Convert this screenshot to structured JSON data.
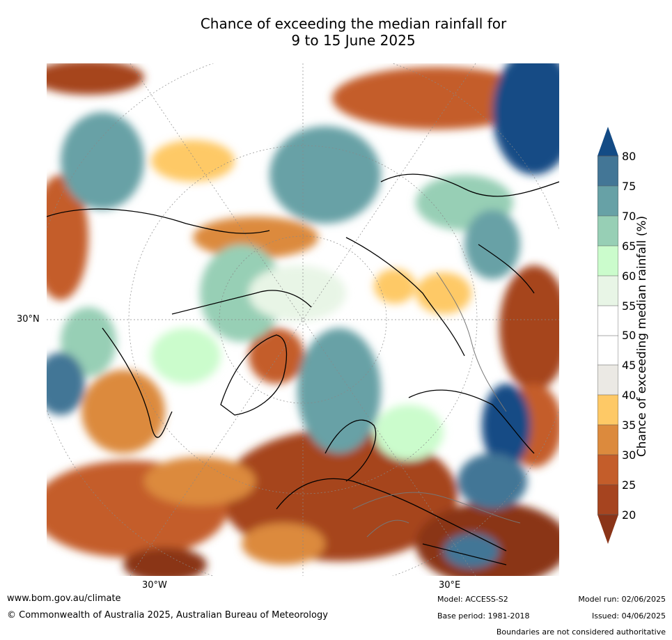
{
  "title": {
    "line1": "Chance of exceeding the median rainfall for",
    "line2": "9 to 15 June 2025"
  },
  "map": {
    "projection": "north-polar-stereographic",
    "axis_labels": {
      "left_lat": "30°N",
      "bottom_left": "30°W",
      "bottom_right": "30°E"
    }
  },
  "colorbar": {
    "title": "Chance of exceeding median rainfall (%)",
    "ticks": [
      "20",
      "25",
      "30",
      "35",
      "40",
      "45",
      "50",
      "55",
      "60",
      "65",
      "70",
      "75",
      "80"
    ],
    "bins": [
      {
        "range": "<20",
        "color": "#8a3418"
      },
      {
        "range": "20-25",
        "color": "#a6441f"
      },
      {
        "range": "25-30",
        "color": "#c45d2a"
      },
      {
        "range": "30-35",
        "color": "#dc8a3d"
      },
      {
        "range": "35-40",
        "color": "#fec966"
      },
      {
        "range": "40-45",
        "color": "#ebe9e4"
      },
      {
        "range": "45-50",
        "color": "#ffffff"
      },
      {
        "range": "50-55",
        "color": "#ffffff"
      },
      {
        "range": "55-60",
        "color": "#e8f5e6"
      },
      {
        "range": "60-65",
        "color": "#cbfccc"
      },
      {
        "range": "65-70",
        "color": "#97cfb5"
      },
      {
        "range": "70-75",
        "color": "#67a1a6"
      },
      {
        "range": "75-80",
        "color": "#437696"
      },
      {
        "range": ">80",
        "color": "#134b85"
      }
    ]
  },
  "footer": {
    "url": "www.bom.gov.au/climate",
    "copyright": "© Commonwealth of Australia 2025, Australian Bureau of Meteorology",
    "model": "Model: ACCESS-S2",
    "base_period": "Base period: 1981-2018",
    "model_run": "Model run: 02/06/2025",
    "issued": "Issued: 04/06/2025",
    "boundaries_note": "Boundaries are not considered authoritative"
  }
}
